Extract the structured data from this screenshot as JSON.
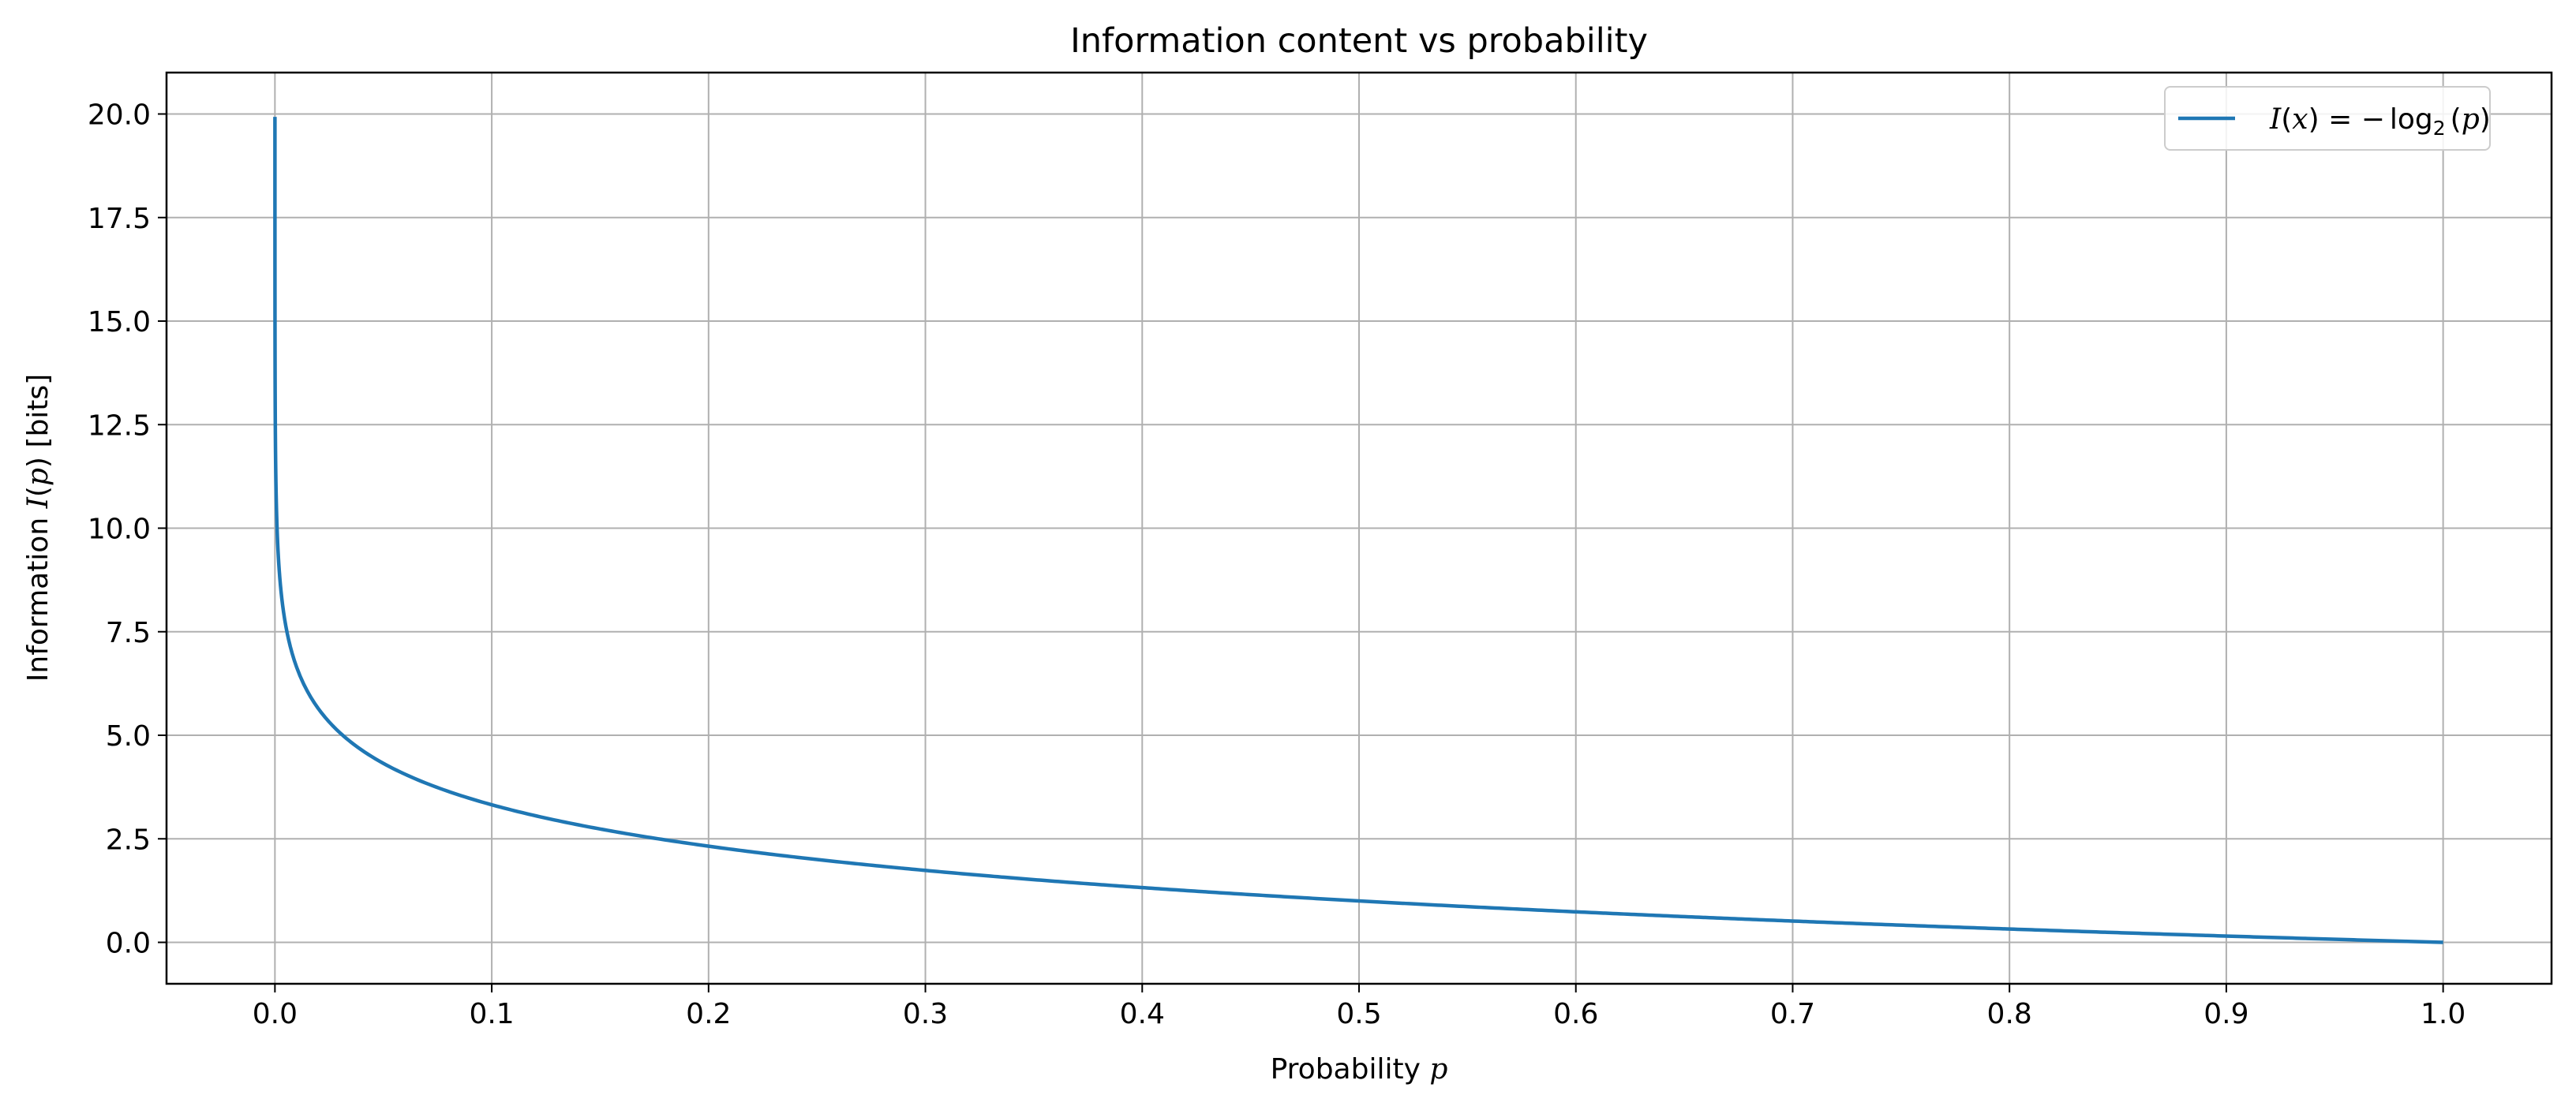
{
  "chart_data": {
    "type": "line",
    "title": "Information content vs probability",
    "xlabel": {
      "text": "Probability ",
      "var": "p"
    },
    "ylabel": {
      "text": "Information ",
      "fn": "I",
      "arg": "p",
      "unit": " [bits]"
    },
    "xlim": [
      -0.05,
      1.05
    ],
    "ylim": [
      -1.0,
      21.0
    ],
    "x_ticks": [
      0.0,
      0.1,
      0.2,
      0.3,
      0.4,
      0.5,
      0.6,
      0.7,
      0.8,
      0.9,
      1.0
    ],
    "x_tick_labels": [
      "0.0",
      "0.1",
      "0.2",
      "0.3",
      "0.4",
      "0.5",
      "0.6",
      "0.7",
      "0.8",
      "0.9",
      "1.0"
    ],
    "y_ticks": [
      0.0,
      2.5,
      5.0,
      7.5,
      10.0,
      12.5,
      15.0,
      17.5,
      20.0
    ],
    "y_tick_labels": [
      "0.0",
      "2.5",
      "5.0",
      "7.5",
      "10.0",
      "12.5",
      "15.0",
      "17.5",
      "20.0"
    ],
    "grid": true,
    "legend_position": "top-right",
    "series": [
      {
        "name": "I(x) = −log2(p)",
        "legend_parts": {
          "lhs_fn": "I",
          "lhs_arg": "x",
          "eq": " = −",
          "op": "log",
          "sub": "2",
          "rhs_arg": "p"
        },
        "function": "-log2(p)",
        "x_min": 1e-06,
        "x_max": 1.0,
        "y_cap": 20.0,
        "color": "#1f77b4"
      }
    ]
  }
}
